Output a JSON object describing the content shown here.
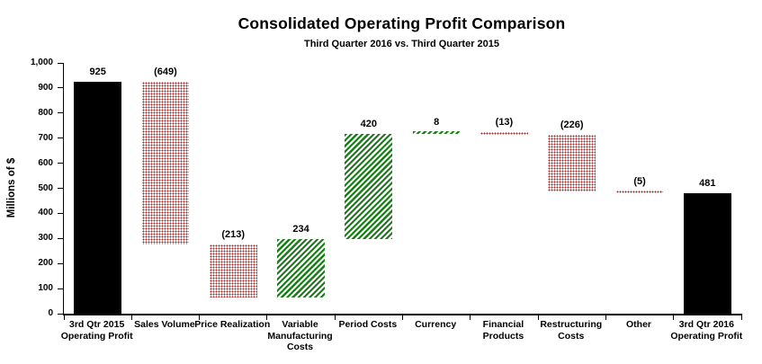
{
  "chart_data": {
    "type": "bar",
    "subtype": "waterfall",
    "title": "Consolidated Operating Profit Comparison",
    "subtitle": "Third Quarter 2016 vs. Third Quarter 2015",
    "ylabel": "Millions of $",
    "xlabel": "",
    "ylim": [
      0,
      1000
    ],
    "ytick_step": 100,
    "grid": false,
    "legend": false,
    "categories": [
      "3rd Qtr 2015\nOperating Profit",
      "Sales Volume",
      "Price Realization",
      "Variable\nManufacturing\nCosts",
      "Period Costs",
      "Currency",
      "Financial\nProducts",
      "Restructuring\nCosts",
      "Other",
      "3rd Qtr 2016\nOperating Profit"
    ],
    "values": [
      925,
      -649,
      -213,
      234,
      420,
      8,
      -13,
      -226,
      -5,
      481
    ],
    "data_labels": [
      "925",
      "(649)",
      "(213)",
      "234",
      "420",
      "8",
      "(13)",
      "(226)",
      "(5)",
      "481"
    ],
    "bar_kinds": [
      "total",
      "decrease",
      "decrease",
      "increase",
      "increase",
      "increase",
      "decrease",
      "decrease",
      "decrease",
      "total"
    ],
    "colors": {
      "total_fill": "#000000",
      "decrease_dot": "#a32424",
      "increase_hatch": "#1a7d1a",
      "axis": "#000000",
      "text": "#000000",
      "background": "#ffffff"
    }
  }
}
